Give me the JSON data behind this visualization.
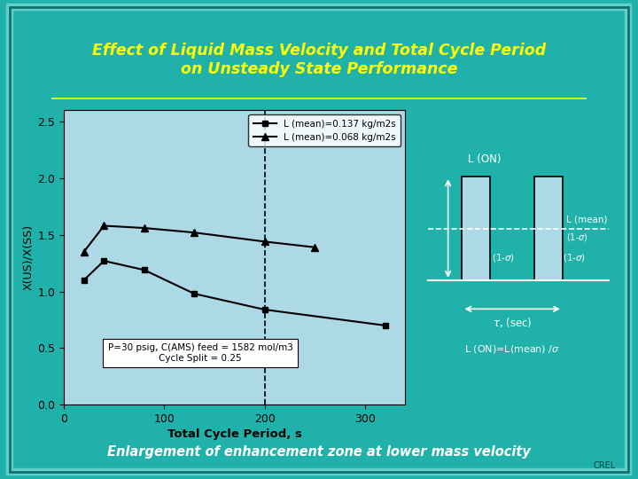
{
  "title_line1": "Effect of Liquid Mass Velocity and Total Cycle Period",
  "title_line2": "on Unsteady State Performance",
  "title_color": "#FFFF00",
  "background_outer": "#20B2AA",
  "plot_bg": "#ADD8E6",
  "right_panel_bg": "#008B8B",
  "xlabel": "Total Cycle Period, s",
  "ylabel": "X(US)/X(SS)",
  "xlim": [
    0,
    340
  ],
  "ylim": [
    0,
    2.6
  ],
  "yticks": [
    0,
    0.5,
    1,
    1.5,
    2,
    2.5
  ],
  "xticks": [
    0,
    100,
    200,
    300
  ],
  "series1_x": [
    20,
    40,
    80,
    130,
    200,
    320
  ],
  "series1_y": [
    1.1,
    1.27,
    1.19,
    0.98,
    0.84,
    0.7
  ],
  "series1_label": "L (mean)=0.137 kg/m2s",
  "series1_color": "#000000",
  "series1_marker": "s",
  "series2_x": [
    20,
    40,
    80,
    130,
    200,
    250
  ],
  "series2_y": [
    1.35,
    1.58,
    1.56,
    1.52,
    1.44,
    1.39
  ],
  "series2_label": "L (mean)=0.068 kg/m2s",
  "series2_color": "#000000",
  "series2_marker": "^",
  "annotation_text1": "P=30 psig, C(AMS) feed = 1582 mol/m3",
  "annotation_text2": "Cycle Split = 0.25",
  "vline_x": 200,
  "bottom_text": "Enlargement of enhancement zone at lower mass velocity",
  "bottom_text_color": "#FFFFFF",
  "crel_text": "CREL",
  "crel_color": "#004444"
}
